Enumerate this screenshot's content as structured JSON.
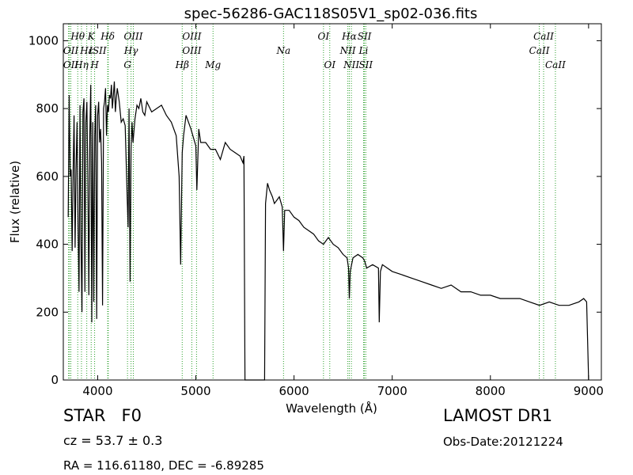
{
  "chart_data": {
    "type": "line",
    "title": "spec-56286-GAC118S05V1_sp02-036.fits",
    "xlabel": "Wavelength (Å)",
    "ylabel": "Flux (relative)",
    "xlim": [
      3650,
      9130
    ],
    "ylim": [
      0,
      1050
    ],
    "xticks": [
      4000,
      5000,
      6000,
      7000,
      8000,
      9000
    ],
    "yticks": [
      0,
      200,
      400,
      600,
      800,
      1000
    ],
    "grid": false,
    "line_color": "#000000",
    "marker_color": "#2ca02c",
    "series": [
      {
        "x": [
          3700,
          3710,
          3720,
          3730,
          3740,
          3750,
          3760,
          3770,
          3780,
          3790,
          3800,
          3810,
          3820,
          3830,
          3840,
          3850,
          3860,
          3870,
          3880,
          3890,
          3900,
          3910,
          3920,
          3930,
          3940,
          3950,
          3960,
          3970,
          3980,
          3990,
          4000,
          4010,
          4020,
          4030,
          4040,
          4050,
          4060,
          4070,
          4080,
          4090,
          4100,
          4110,
          4120,
          4130,
          4140,
          4150,
          4160,
          4170,
          4180,
          4190,
          4200,
          4220,
          4240,
          4260,
          4280,
          4300,
          4310,
          4320,
          4330,
          4340,
          4350,
          4360,
          4380,
          4400,
          4420,
          4440,
          4460,
          4480,
          4500,
          4550,
          4600,
          4650,
          4700,
          4750,
          4800,
          4830,
          4845,
          4861,
          4875,
          4900,
          4950,
          5000,
          5010,
          5030,
          5050,
          5100,
          5150,
          5200,
          5250,
          5300,
          5350,
          5400,
          5450,
          5480,
          5490,
          5500,
          5700,
          5710,
          5730,
          5750,
          5780,
          5800,
          5850,
          5880,
          5893,
          5905,
          5950,
          6000,
          6050,
          6100,
          6150,
          6200,
          6250,
          6300,
          6350,
          6400,
          6450,
          6500,
          6540,
          6555,
          6563,
          6572,
          6600,
          6650,
          6700,
          6720,
          6740,
          6800,
          6860,
          6868,
          6880,
          6900,
          6950,
          7000,
          7100,
          7200,
          7300,
          7400,
          7500,
          7600,
          7700,
          7800,
          7900,
          8000,
          8100,
          8200,
          8300,
          8400,
          8500,
          8600,
          8700,
          8800,
          8900,
          8950,
          8980,
          9000
        ],
        "y": [
          480,
          840,
          600,
          620,
          380,
          610,
          780,
          390,
          620,
          760,
          460,
          260,
          810,
          420,
          200,
          790,
          830,
          260,
          760,
          820,
          600,
          250,
          720,
          870,
          170,
          760,
          230,
          720,
          810,
          180,
          780,
          820,
          700,
          740,
          640,
          220,
          800,
          820,
          860,
          720,
          810,
          790,
          840,
          830,
          870,
          800,
          840,
          880,
          790,
          830,
          860,
          820,
          760,
          770,
          750,
          540,
          450,
          800,
          290,
          680,
          760,
          700,
          770,
          810,
          800,
          830,
          790,
          780,
          820,
          790,
          800,
          810,
          780,
          760,
          720,
          600,
          340,
          670,
          720,
          780,
          740,
          690,
          560,
          740,
          700,
          700,
          680,
          680,
          650,
          700,
          680,
          670,
          660,
          640,
          660,
          0,
          0,
          520,
          580,
          560,
          540,
          520,
          540,
          510,
          380,
          500,
          500,
          480,
          470,
          450,
          440,
          430,
          410,
          400,
          420,
          400,
          390,
          370,
          360,
          330,
          240,
          320,
          360,
          370,
          360,
          350,
          330,
          340,
          330,
          170,
          320,
          340,
          330,
          320,
          310,
          300,
          290,
          280,
          270,
          280,
          260,
          260,
          250,
          250,
          240,
          240,
          240,
          230,
          220,
          230,
          220,
          220,
          230,
          240,
          230,
          0
        ]
      }
    ],
    "spectral_lines": [
      {
        "label": "Hθ",
        "x": 3797,
        "row": 0
      },
      {
        "label": "K",
        "x": 3934,
        "row": 0
      },
      {
        "label": "Hδ",
        "x": 4102,
        "row": 0
      },
      {
        "label": "OIII",
        "x": 4363,
        "row": 0
      },
      {
        "label": "OIII",
        "x": 4959,
        "row": 0
      },
      {
        "label": "OI",
        "x": 6300,
        "row": 0
      },
      {
        "label": "Hα",
        "x": 6563,
        "row": 0
      },
      {
        "label": "SII",
        "x": 6717,
        "row": 0
      },
      {
        "label": "CaII",
        "x": 8542,
        "row": 0
      },
      {
        "label": "OII",
        "x": 3727,
        "row": 1
      },
      {
        "label": "Hε",
        "x": 3889,
        "row": 1
      },
      {
        "label": "ISII",
        "x": 4000,
        "row": 1
      },
      {
        "label": "Hγ",
        "x": 4340,
        "row": 1
      },
      {
        "label": "OIII",
        "x": 4959,
        "row": 1
      },
      {
        "label": "Na",
        "x": 5893,
        "row": 1
      },
      {
        "label": "NII",
        "x": 6548,
        "row": 1
      },
      {
        "label": "Li",
        "x": 6708,
        "row": 1
      },
      {
        "label": "CaII",
        "x": 8498,
        "row": 1
      },
      {
        "label": "OII",
        "x": 3727,
        "row": 2
      },
      {
        "label": "Hη",
        "x": 3835,
        "row": 2
      },
      {
        "label": "H",
        "x": 3969,
        "row": 2
      },
      {
        "label": "G",
        "x": 4304,
        "row": 2
      },
      {
        "label": "Hβ",
        "x": 4861,
        "row": 2
      },
      {
        "label": "Mg",
        "x": 5175,
        "row": 2
      },
      {
        "label": "OI",
        "x": 6364,
        "row": 2
      },
      {
        "label": "NII",
        "x": 6584,
        "row": 2
      },
      {
        "label": "SII",
        "x": 6731,
        "row": 2
      },
      {
        "label": "CaII",
        "x": 8662,
        "row": 2
      }
    ],
    "marker_lines": [
      3704,
      3712,
      3727,
      3797,
      3835,
      3889,
      3934,
      3969,
      4102,
      4108,
      4304,
      4340,
      4363,
      4861,
      4959,
      5007,
      5175,
      5893,
      6300,
      6364,
      6548,
      6563,
      6584,
      6708,
      6717,
      6731,
      8498,
      8542,
      8662
    ]
  },
  "info": {
    "class": "STAR   F0",
    "cz": "cz = 53.7 ± 0.3",
    "radec": "RA = 116.61180, DEC = -6.89285",
    "survey": "LAMOST DR1",
    "obs_date": "Obs-Date:20121224"
  }
}
